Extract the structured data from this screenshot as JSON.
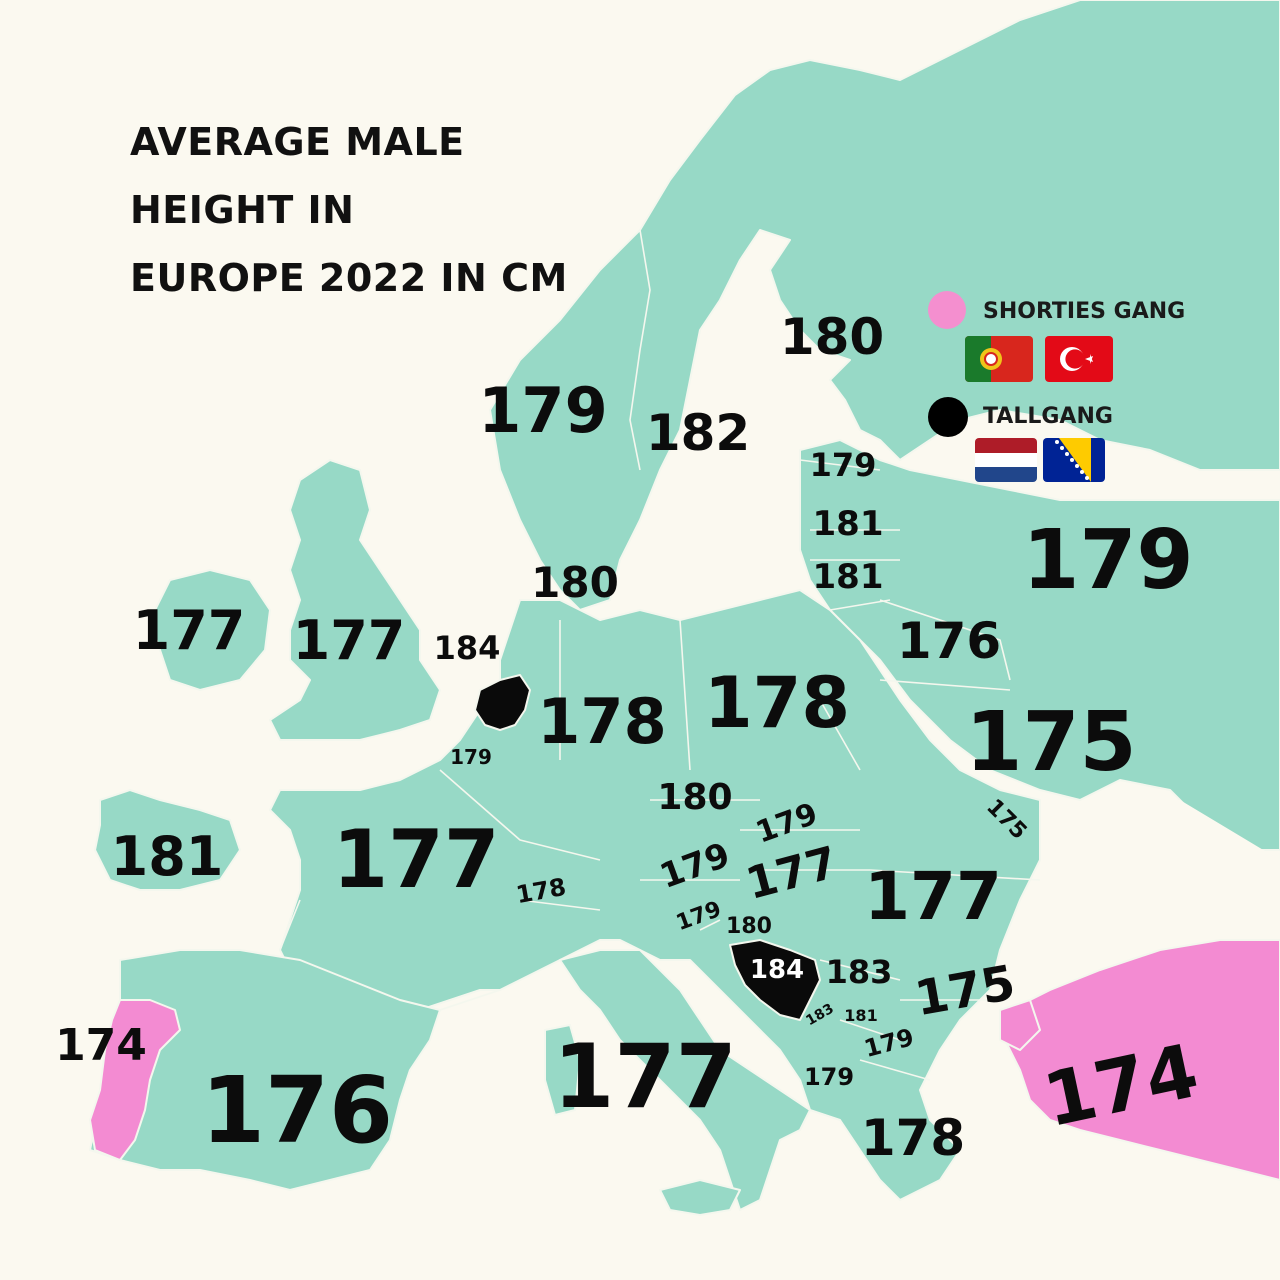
{
  "title": {
    "line1": "AVERAGE MALE",
    "line2": "HEIGHT IN",
    "line3": "EUROPE 2022 IN CM"
  },
  "legend": {
    "shorties": {
      "label": "SHORTIES GANG",
      "color": "#f48fcf",
      "flags": [
        "portugal-flag-icon",
        "turkey-flag-icon"
      ]
    },
    "tall": {
      "label": "TALLGANG",
      "color": "#000000",
      "flags": [
        "netherlands-flag-icon",
        "bosnia-flag-icon"
      ]
    }
  },
  "colors": {
    "land": "#97d9c6",
    "highlight_short": "#f38bd2",
    "highlight_tall": "#0a0a0a",
    "background": "#fbf9f0"
  },
  "heights": [
    {
      "id": "norway",
      "value": "179"
    },
    {
      "id": "sweden",
      "value": "182"
    },
    {
      "id": "finland",
      "value": "180"
    },
    {
      "id": "estonia",
      "value": "179"
    },
    {
      "id": "latvia",
      "value": "181"
    },
    {
      "id": "lithuania",
      "value": "181"
    },
    {
      "id": "russia",
      "value": "179"
    },
    {
      "id": "denmark",
      "value": "180"
    },
    {
      "id": "ireland",
      "value": "177"
    },
    {
      "id": "uk",
      "value": "177"
    },
    {
      "id": "netherlands",
      "value": "184"
    },
    {
      "id": "belgium",
      "value": "179"
    },
    {
      "id": "germany",
      "value": "178"
    },
    {
      "id": "poland",
      "value": "178"
    },
    {
      "id": "belarus",
      "value": "176"
    },
    {
      "id": "ukraine",
      "value": "175"
    },
    {
      "id": "czechia",
      "value": "180"
    },
    {
      "id": "slovakia",
      "value": "179"
    },
    {
      "id": "moldova",
      "value": "175"
    },
    {
      "id": "iceland",
      "value": "181"
    },
    {
      "id": "france",
      "value": "177"
    },
    {
      "id": "austria",
      "value": "179"
    },
    {
      "id": "hungary",
      "value": "177"
    },
    {
      "id": "switzerland",
      "value": "178"
    },
    {
      "id": "romania",
      "value": "177"
    },
    {
      "id": "slovenia",
      "value": "179"
    },
    {
      "id": "croatia",
      "value": "180"
    },
    {
      "id": "bosnia",
      "value": "184"
    },
    {
      "id": "serbia",
      "value": "183"
    },
    {
      "id": "bulgaria",
      "value": "175"
    },
    {
      "id": "montenegro",
      "value": "183"
    },
    {
      "id": "kosovo",
      "value": "181"
    },
    {
      "id": "north-macedonia",
      "value": "179"
    },
    {
      "id": "albania",
      "value": "179"
    },
    {
      "id": "portugal",
      "value": "174"
    },
    {
      "id": "spain",
      "value": "176"
    },
    {
      "id": "italy",
      "value": "177"
    },
    {
      "id": "greece",
      "value": "178"
    },
    {
      "id": "turkey",
      "value": "174"
    }
  ]
}
